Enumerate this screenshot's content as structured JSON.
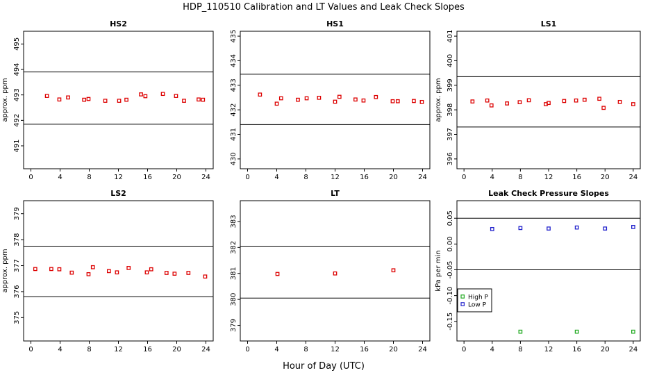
{
  "figure": {
    "title": "HDP_110510  Calibration and LT Values and Leak Check Slopes",
    "xlabel": "Hour of Day (UTC)"
  },
  "chart_data": [
    {
      "type": "scatter",
      "title": "HS2",
      "ylabel": "approx. ppm",
      "xlim": [
        -1,
        25
      ],
      "ylim": [
        490.1,
        495.5
      ],
      "xticks": [
        0,
        4,
        8,
        12,
        16,
        20,
        24
      ],
      "yticks": [
        491,
        492,
        493,
        494,
        495
      ],
      "hlines": [
        493.9,
        491.85
      ],
      "grid": false,
      "series": [
        {
          "color": "#dd0000",
          "marker": "square",
          "x": [
            2.2,
            3.9,
            5.1,
            7.3,
            7.9,
            10.2,
            12.1,
            13.1,
            15.1,
            15.7,
            18.1,
            19.9,
            21.0,
            23.0,
            23.6
          ],
          "y": [
            492.96,
            492.82,
            492.9,
            492.81,
            492.84,
            492.77,
            492.77,
            492.81,
            493.02,
            492.95,
            493.04,
            492.96,
            492.77,
            492.82,
            492.81
          ]
        }
      ]
    },
    {
      "type": "scatter",
      "title": "HS1",
      "ylabel": "",
      "xlim": [
        -1,
        25
      ],
      "ylim": [
        429.6,
        435.2
      ],
      "xticks": [
        0,
        4,
        8,
        12,
        16,
        20,
        24
      ],
      "yticks": [
        430,
        431,
        432,
        433,
        434,
        435
      ],
      "hlines": [
        433.45,
        431.4
      ],
      "grid": false,
      "series": [
        {
          "color": "#dd0000",
          "marker": "square",
          "x": [
            1.7,
            4.0,
            4.6,
            6.9,
            8.1,
            9.8,
            12.0,
            12.6,
            14.8,
            15.9,
            17.6,
            19.9,
            20.6,
            22.8,
            23.9
          ],
          "y": [
            432.62,
            432.25,
            432.47,
            432.41,
            432.47,
            432.49,
            432.33,
            432.53,
            432.42,
            432.38,
            432.52,
            432.35,
            432.35,
            432.36,
            432.32
          ]
        }
      ]
    },
    {
      "type": "scatter",
      "title": "LS1",
      "ylabel": "approx. ppm",
      "xlim": [
        -1,
        25
      ],
      "ylim": [
        395.6,
        401.2
      ],
      "xticks": [
        0,
        4,
        8,
        12,
        16,
        20,
        24
      ],
      "yticks": [
        396,
        397,
        398,
        399,
        400,
        401
      ],
      "hlines": [
        399.35,
        397.3
      ],
      "grid": false,
      "series": [
        {
          "color": "#dd0000",
          "marker": "square",
          "x": [
            1.2,
            3.3,
            3.9,
            6.1,
            7.9,
            9.2,
            11.6,
            12.0,
            14.2,
            15.9,
            17.1,
            19.2,
            19.8,
            22.1,
            24.0
          ],
          "y": [
            398.34,
            398.38,
            398.18,
            398.26,
            398.31,
            398.39,
            398.23,
            398.28,
            398.36,
            398.38,
            398.41,
            398.45,
            398.08,
            398.32,
            398.23
          ]
        }
      ]
    },
    {
      "type": "scatter",
      "title": "LS2",
      "ylabel": "approx. ppm",
      "xlim": [
        -1,
        25
      ],
      "ylim": [
        374.1,
        379.5
      ],
      "xticks": [
        0,
        4,
        8,
        12,
        16,
        20,
        24
      ],
      "yticks": [
        375,
        376,
        377,
        378,
        379
      ],
      "hlines": [
        377.75,
        375.8
      ],
      "grid": false,
      "series": [
        {
          "color": "#dd0000",
          "marker": "square",
          "x": [
            0.6,
            2.8,
            3.9,
            5.6,
            7.9,
            8.5,
            10.7,
            11.8,
            13.4,
            15.9,
            16.5,
            18.6,
            19.7,
            21.6,
            23.9
          ],
          "y": [
            376.87,
            376.87,
            376.86,
            376.73,
            376.67,
            376.94,
            376.79,
            376.74,
            376.91,
            376.74,
            376.86,
            376.72,
            376.69,
            376.72,
            376.58
          ]
        }
      ]
    },
    {
      "type": "scatter",
      "title": "LT",
      "ylabel": "",
      "xlim": [
        -1,
        25
      ],
      "ylim": [
        378.4,
        383.8
      ],
      "xticks": [
        0,
        4,
        8,
        12,
        16,
        20,
        24
      ],
      "yticks": [
        379,
        380,
        381,
        382,
        383
      ],
      "hlines": [
        382.05,
        380.05
      ],
      "grid": false,
      "series": [
        {
          "color": "#dd0000",
          "marker": "square",
          "x": [
            4.1,
            12.0,
            20.0
          ],
          "y": [
            380.98,
            381.0,
            381.12
          ]
        }
      ]
    },
    {
      "type": "scatter",
      "title": "Leak Check Pressure Slopes",
      "ylabel": "kPa per min",
      "xlim": [
        -1,
        25
      ],
      "ylim": [
        -0.188,
        0.084
      ],
      "xticks": [
        0,
        4,
        8,
        12,
        16,
        20,
        24
      ],
      "yticks": [
        -0.15,
        -0.1,
        -0.05,
        0.0,
        0.05
      ],
      "ytick_labels": [
        "-0.15",
        "-0.10",
        "-0.05",
        "0.00",
        "0.05"
      ],
      "hlines": [
        0.05,
        -0.05
      ],
      "grid": false,
      "legend": {
        "position": "left",
        "labels": [
          "High P",
          "Low P"
        ]
      },
      "series": [
        {
          "name": "High P",
          "color": "#22aa22",
          "marker": "square",
          "x": [
            8.0,
            16.0,
            24.0
          ],
          "y": [
            -0.17,
            -0.17,
            -0.17
          ]
        },
        {
          "name": "Low P",
          "color": "#2222cc",
          "marker": "square",
          "x": [
            4.0,
            8.0,
            12.0,
            16.0,
            20.0,
            24.0
          ],
          "y": [
            0.029,
            0.031,
            0.03,
            0.032,
            0.03,
            0.033
          ]
        }
      ]
    }
  ]
}
